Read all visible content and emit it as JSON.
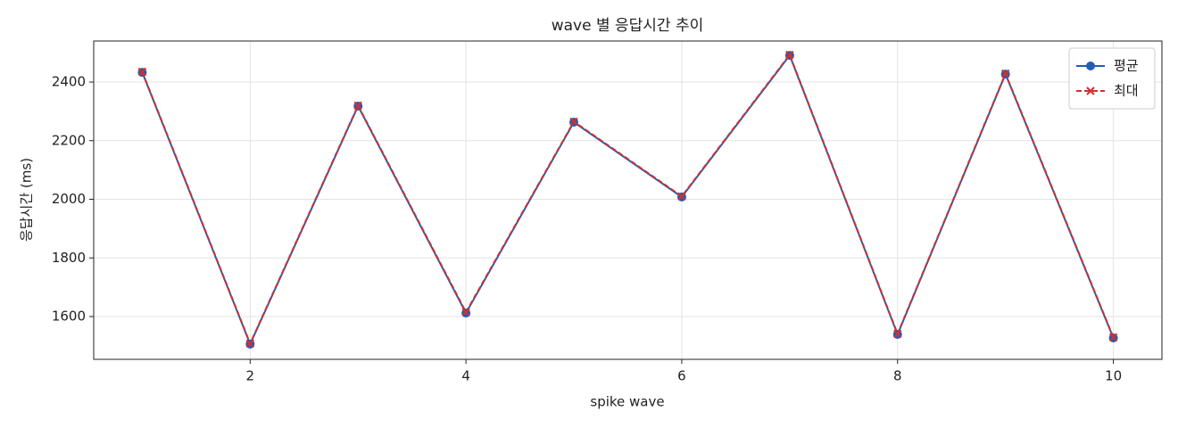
{
  "chart_data": {
    "type": "line",
    "title": "wave 별 응답시간 추이",
    "x_label": "spike wave",
    "y_label": "응답시간 (ms)",
    "x": [
      1,
      2,
      3,
      4,
      5,
      6,
      7,
      8,
      9,
      10
    ],
    "series": [
      {
        "name": "평균",
        "color": "#1f5fb4",
        "marker": "circle",
        "dash": "solid",
        "values": [
          2433,
          1506,
          2318,
          1612,
          2263,
          2008,
          2491,
          1539,
          2427,
          1527
        ]
      },
      {
        "name": "최대",
        "color": "#d03030",
        "marker": "x",
        "dash": "dashed",
        "values": [
          2435,
          1508,
          2320,
          1615,
          2265,
          2010,
          2493,
          1541,
          2429,
          1529
        ]
      }
    ],
    "xlim": [
      0.55,
      10.45
    ],
    "ylim": [
      1454,
      2540
    ],
    "xticks": [
      2,
      4,
      6,
      8,
      10
    ],
    "yticks": [
      1600,
      1800,
      2000,
      2200,
      2400
    ],
    "grid": true,
    "legend": "upper right"
  }
}
